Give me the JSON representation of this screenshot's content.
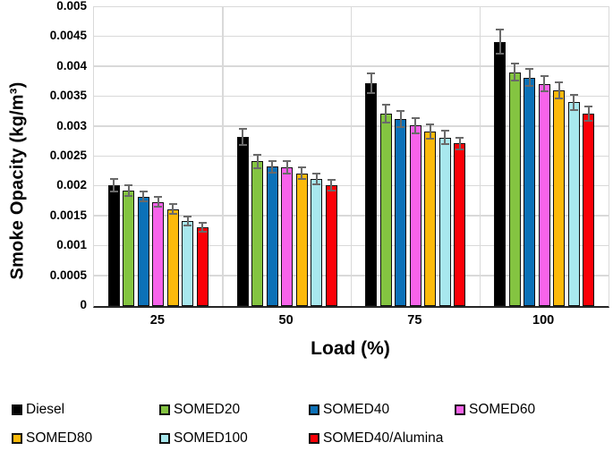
{
  "chart_data": {
    "type": "bar",
    "title": "",
    "xlabel": "Load (%)",
    "ylabel": "Smoke Opacity (kg/m³)",
    "categories": [
      "25",
      "50",
      "75",
      "100"
    ],
    "series": [
      {
        "name": "Diesel",
        "color": "#000000",
        "values": [
          0.00202,
          0.00283,
          0.00373,
          0.00442
        ],
        "errors": [
          0.0001,
          0.00013,
          0.00016,
          0.0002
        ]
      },
      {
        "name": "SOMED20",
        "color": "#84C441",
        "values": [
          0.00193,
          0.00242,
          0.00322,
          0.00391
        ],
        "errors": [
          9e-05,
          0.00011,
          0.00015,
          0.00014
        ]
      },
      {
        "name": "SOMED40",
        "color": "#0C71B8",
        "values": [
          0.00183,
          0.00233,
          0.00313,
          0.00382
        ],
        "errors": [
          8e-05,
          0.0001,
          0.00013,
          0.00014
        ]
      },
      {
        "name": "SOMED60",
        "color": "#F763EA",
        "values": [
          0.00174,
          0.00232,
          0.00302,
          0.00372
        ],
        "errors": [
          8e-05,
          0.0001,
          0.00013,
          0.00013
        ]
      },
      {
        "name": "SOMED80",
        "color": "#FCBA0B",
        "values": [
          0.00162,
          0.00222,
          0.00292,
          0.00361
        ],
        "errors": [
          8e-05,
          0.0001,
          0.00012,
          0.00013
        ]
      },
      {
        "name": "SOMED100",
        "color": "#A8E8EE",
        "values": [
          0.00142,
          0.00212,
          0.00282,
          0.00341
        ],
        "errors": [
          7e-05,
          9e-05,
          0.00011,
          0.00013
        ]
      },
      {
        "name": "SOMED40/Alumina",
        "color": "#FB0007",
        "values": [
          0.00132,
          0.00202,
          0.00272,
          0.00322
        ],
        "errors": [
          7e-05,
          9e-05,
          0.0001,
          0.00012
        ]
      }
    ],
    "ylim": [
      0,
      0.005
    ],
    "yticks": [
      "0",
      "0.0005",
      "0.001",
      "0.0015",
      "0.002",
      "0.0025",
      "0.003",
      "0.0035",
      "0.004",
      "0.0045",
      "0.005"
    ],
    "grid": true,
    "legend_position": "bottom",
    "colors": {
      "gridline": "#d9d9d9",
      "axis_line": "#262626",
      "error_bar": "#6a6a6a",
      "bar_outline": "#0d0d0d"
    }
  }
}
